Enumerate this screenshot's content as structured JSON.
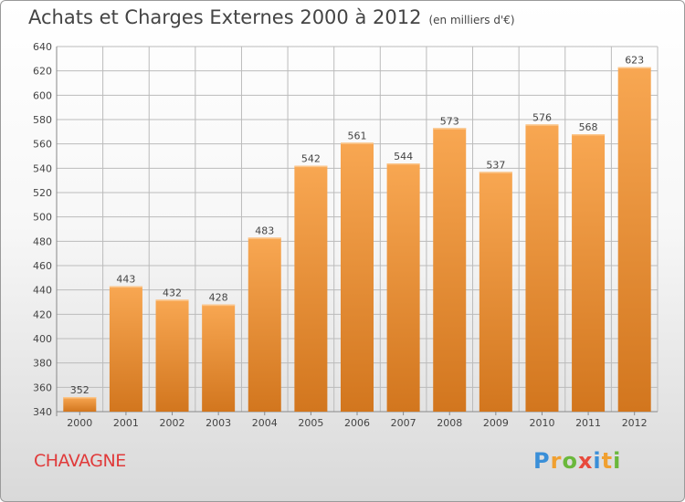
{
  "header": {
    "title": "Achats et Charges Externes 2000 à 2012",
    "subtitle": "(en milliers d'€)"
  },
  "footer": {
    "commune": "CHAVAGNE",
    "logo_letters": [
      "P",
      "r",
      "o",
      "x",
      "i",
      "t",
      "i"
    ],
    "logo_colors": [
      "#3a8fd8",
      "#f0a030",
      "#6ab83b",
      "#e84a3c",
      "#3a8fd8",
      "#f0a030",
      "#6ab83b"
    ]
  },
  "colors": {
    "bar_light": "#f8a752",
    "bar_dark": "#d2761e",
    "grid": "#bbbbbb",
    "text": "#444444"
  },
  "chart_data": {
    "type": "bar",
    "title": "Achats et Charges Externes 2000 à 2012",
    "subtitle": "(en milliers d'€)",
    "categories": [
      "2000",
      "2001",
      "2002",
      "2003",
      "2004",
      "2005",
      "2006",
      "2007",
      "2008",
      "2009",
      "2010",
      "2011",
      "2012"
    ],
    "values": [
      352,
      443,
      432,
      428,
      483,
      542,
      561,
      544,
      573,
      537,
      576,
      568,
      623
    ],
    "ylim": [
      340,
      640
    ],
    "yticks": [
      340,
      360,
      380,
      400,
      420,
      440,
      460,
      480,
      500,
      520,
      540,
      560,
      580,
      600,
      620,
      640
    ],
    "grid": true,
    "data_labels": true
  }
}
